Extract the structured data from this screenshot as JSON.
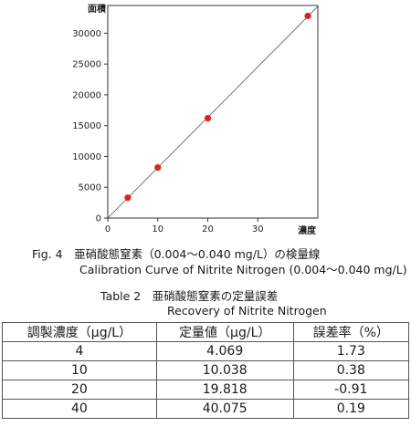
{
  "figure": {
    "caption_line1": "Fig. 4　亜硝酸態窒素（0.004～0.040 mg/L）の検量線",
    "caption_line2": "Calibration Curve of Nitrite Nitrogen (0.004～0.040 mg/L)"
  },
  "chart_data": {
    "type": "scatter",
    "ylabel": "面積",
    "xlabel": "濃度",
    "xlim": [
      0,
      42
    ],
    "ylim": [
      0,
      34500
    ],
    "x_ticks": [
      0,
      10,
      20,
      30
    ],
    "y_ticks": [
      0,
      5000,
      10000,
      15000,
      20000,
      25000,
      30000
    ],
    "points": [
      {
        "x": 4,
        "y": 3300
      },
      {
        "x": 10,
        "y": 8200
      },
      {
        "x": 20,
        "y": 16200
      },
      {
        "x": 40,
        "y": 32800
      }
    ],
    "regression_line": true,
    "point_color": "#d9261c"
  },
  "table": {
    "caption_line1": "Table 2　亜硝酸態窒素の定量誤差",
    "caption_line2": "Recovery of Nitrite Nitrogen",
    "headers": [
      "調製濃度（μg/L）",
      "定量値（μg/L）",
      "誤差率（%）"
    ],
    "rows": [
      [
        "4",
        "4.069",
        "1.73"
      ],
      [
        "10",
        "10.038",
        "0.38"
      ],
      [
        "20",
        "19.818",
        "-0.91"
      ],
      [
        "40",
        "40.075",
        "0.19"
      ]
    ]
  }
}
